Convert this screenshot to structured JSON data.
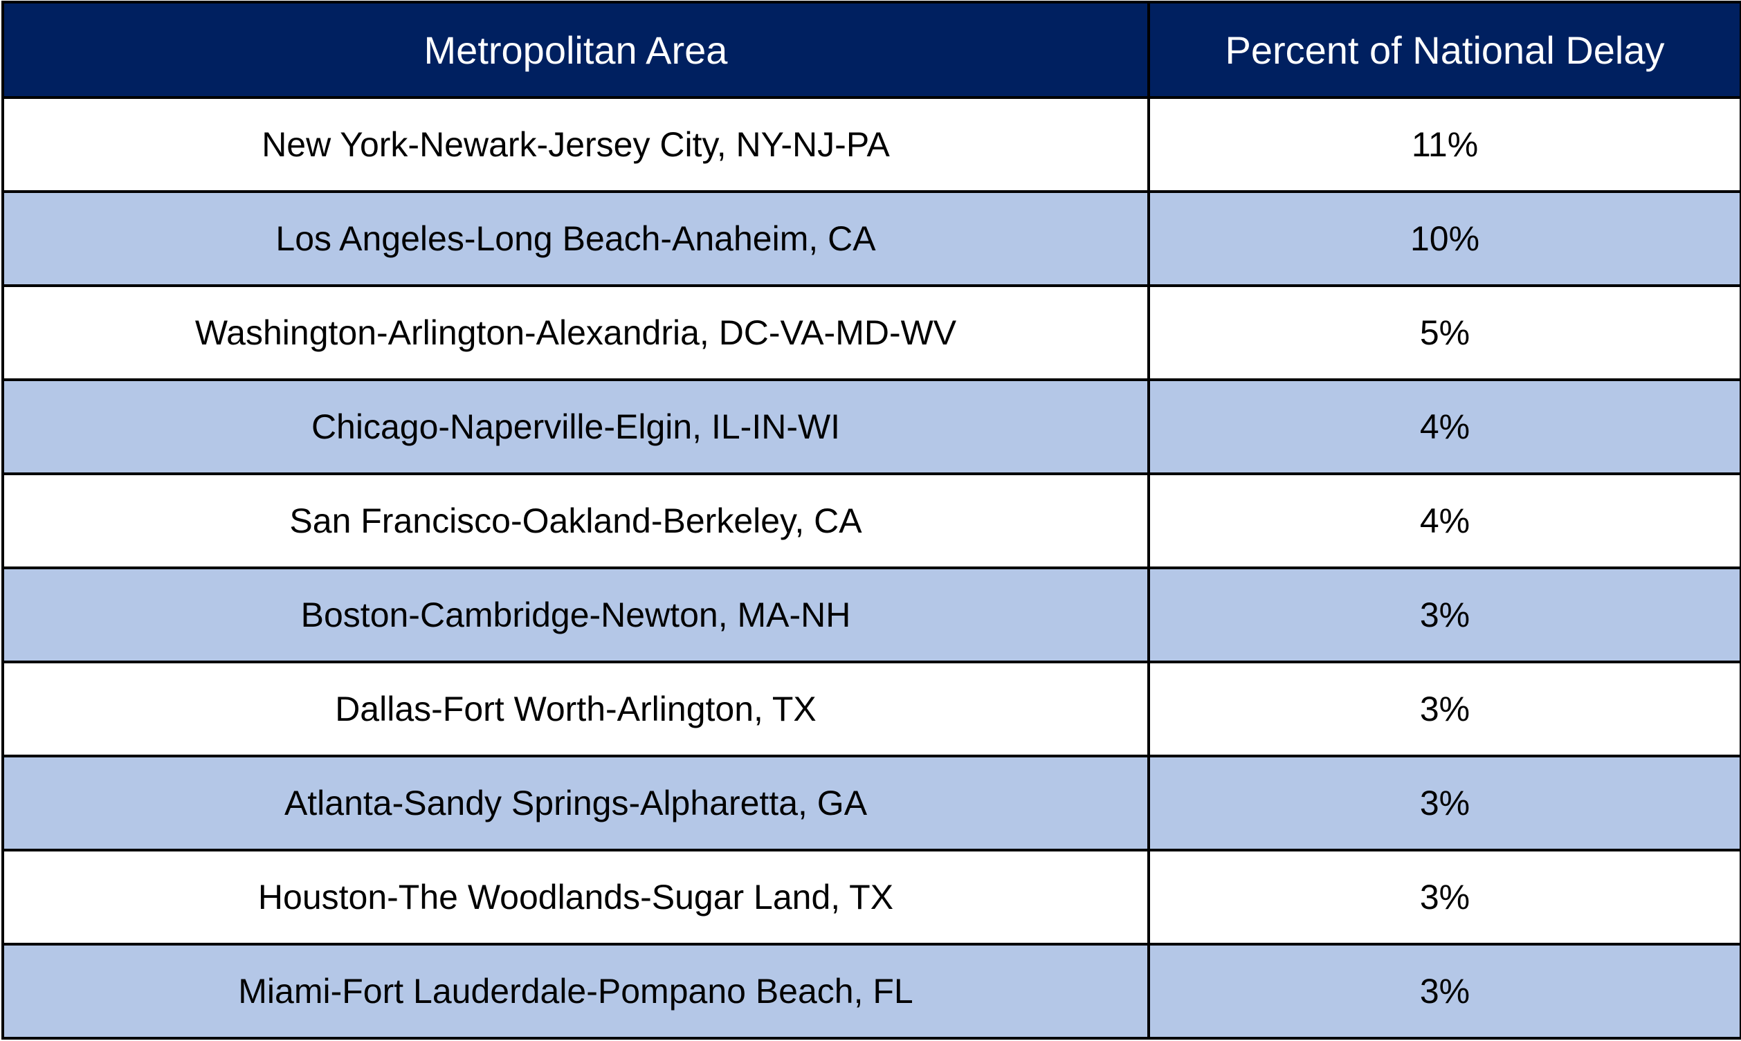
{
  "table": {
    "headers": [
      "Metropolitan Area",
      "Percent of National Delay"
    ],
    "rows": [
      {
        "area": "New York-Newark-Jersey City, NY-NJ-PA",
        "percent": "11%"
      },
      {
        "area": "Los Angeles-Long Beach-Anaheim, CA",
        "percent": "10%"
      },
      {
        "area": "Washington-Arlington-Alexandria, DC-VA-MD-WV",
        "percent": "5%"
      },
      {
        "area": "Chicago-Naperville-Elgin, IL-IN-WI",
        "percent": "4%"
      },
      {
        "area": "San Francisco-Oakland-Berkeley, CA",
        "percent": "4%"
      },
      {
        "area": "Boston-Cambridge-Newton, MA-NH",
        "percent": "3%"
      },
      {
        "area": "Dallas-Fort Worth-Arlington, TX",
        "percent": "3%"
      },
      {
        "area": "Atlanta-Sandy Springs-Alpharetta, GA",
        "percent": "3%"
      },
      {
        "area": "Houston-The Woodlands-Sugar Land, TX",
        "percent": "3%"
      },
      {
        "area": "Miami-Fort Lauderdale-Pompano Beach, FL",
        "percent": "3%"
      }
    ]
  },
  "colors": {
    "header_background": "#002060",
    "header_text": "#ffffff",
    "band_row": "#b4c7e7",
    "plain_row": "#ffffff",
    "border": "#000000"
  }
}
